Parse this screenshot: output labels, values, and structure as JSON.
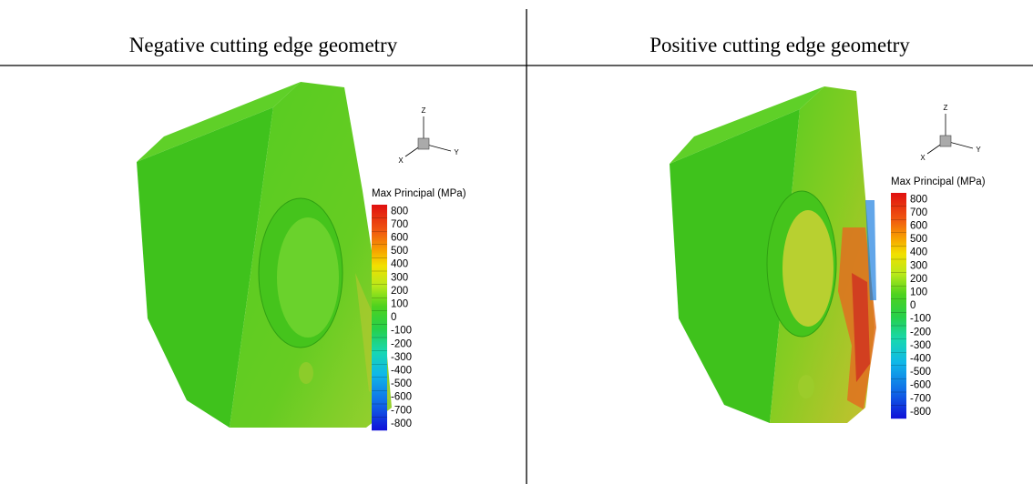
{
  "columns": [
    {
      "header": "Negative cutting edge geometry",
      "axes": {
        "z": "Z",
        "x": "X",
        "y": "Y"
      },
      "legend": {
        "title": "Max Principal (MPa)",
        "labels": [
          800,
          700,
          600,
          500,
          400,
          300,
          200,
          100,
          0,
          -100,
          -200,
          -300,
          -400,
          -500,
          -600,
          -700,
          -800
        ]
      }
    },
    {
      "header": "Positive cutting edge geometry",
      "axes": {
        "z": "Z",
        "x": "X",
        "y": "Y"
      },
      "legend": {
        "title": "Max Principal (MPa)",
        "labels": [
          800,
          700,
          600,
          500,
          400,
          300,
          200,
          100,
          0,
          -100,
          -200,
          -300,
          -400,
          -500,
          -600,
          -700,
          -800
        ]
      }
    }
  ]
}
